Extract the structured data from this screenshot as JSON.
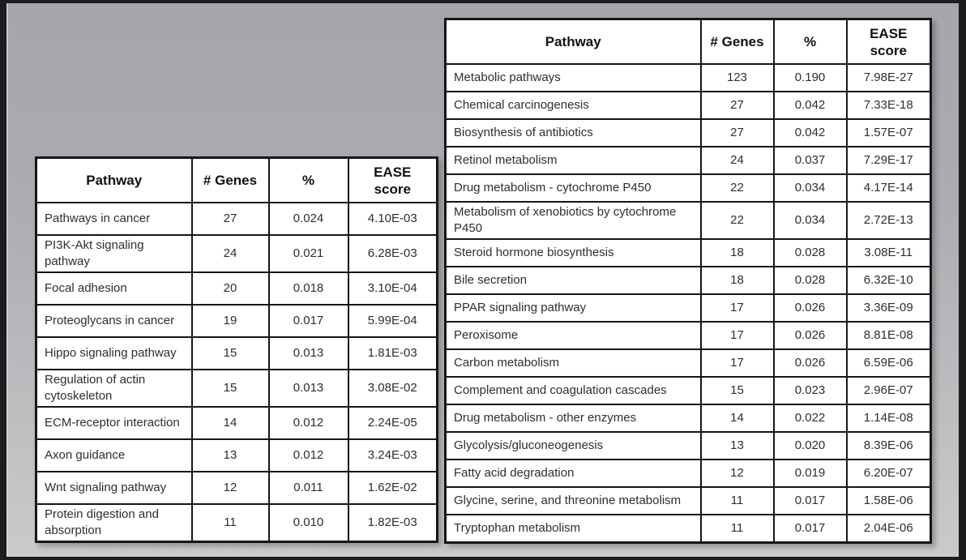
{
  "tables": {
    "left": {
      "headers": {
        "pathway": "Pathway",
        "genes": "# Genes",
        "pct": "%",
        "ease": "EASE score"
      },
      "rows": [
        {
          "pathway": "Pathways in cancer",
          "genes": "27",
          "pct": "0.024",
          "ease": "4.10E-03"
        },
        {
          "pathway": "PI3K-Akt signaling pathway",
          "genes": "24",
          "pct": "0.021",
          "ease": "6.28E-03"
        },
        {
          "pathway": "Focal adhesion",
          "genes": "20",
          "pct": "0.018",
          "ease": "3.10E-04"
        },
        {
          "pathway": "Proteoglycans in cancer",
          "genes": "19",
          "pct": "0.017",
          "ease": "5.99E-04"
        },
        {
          "pathway": "Hippo signaling pathway",
          "genes": "15",
          "pct": "0.013",
          "ease": "1.81E-03"
        },
        {
          "pathway": "Regulation of actin cytoskeleton",
          "genes": "15",
          "pct": "0.013",
          "ease": "3.08E-02"
        },
        {
          "pathway": "ECM-receptor interaction",
          "genes": "14",
          "pct": "0.012",
          "ease": "2.24E-05"
        },
        {
          "pathway": "Axon guidance",
          "genes": "13",
          "pct": "0.012",
          "ease": "3.24E-03"
        },
        {
          "pathway": "Wnt signaling pathway",
          "genes": "12",
          "pct": "0.011",
          "ease": "1.62E-02"
        },
        {
          "pathway": "Protein digestion and absorption",
          "genes": "11",
          "pct": "0.010",
          "ease": "1.82E-03"
        }
      ]
    },
    "right": {
      "headers": {
        "pathway": "Pathway",
        "genes": "# Genes",
        "pct": "%",
        "ease": "EASE score"
      },
      "rows": [
        {
          "pathway": "Metabolic pathways",
          "genes": "123",
          "pct": "0.190",
          "ease": "7.98E-27"
        },
        {
          "pathway": "Chemical carcinogenesis",
          "genes": "27",
          "pct": "0.042",
          "ease": "7.33E-18"
        },
        {
          "pathway": "Biosynthesis of antibiotics",
          "genes": "27",
          "pct": "0.042",
          "ease": "1.57E-07"
        },
        {
          "pathway": "Retinol metabolism",
          "genes": "24",
          "pct": "0.037",
          "ease": "7.29E-17"
        },
        {
          "pathway": "Drug metabolism - cytochrome P450",
          "genes": "22",
          "pct": "0.034",
          "ease": "4.17E-14"
        },
        {
          "pathway": "Metabolism of xenobiotics by cytochrome P450",
          "genes": "22",
          "pct": "0.034",
          "ease": "2.72E-13"
        },
        {
          "pathway": "Steroid hormone biosynthesis",
          "genes": "18",
          "pct": "0.028",
          "ease": "3.08E-11"
        },
        {
          "pathway": "Bile secretion",
          "genes": "18",
          "pct": "0.028",
          "ease": "6.32E-10"
        },
        {
          "pathway": "PPAR signaling pathway",
          "genes": "17",
          "pct": "0.026",
          "ease": "3.36E-09"
        },
        {
          "pathway": "Peroxisome",
          "genes": "17",
          "pct": "0.026",
          "ease": "8.81E-08"
        },
        {
          "pathway": "Carbon metabolism",
          "genes": "17",
          "pct": "0.026",
          "ease": "6.59E-06"
        },
        {
          "pathway": "Complement and coagulation cascades",
          "genes": "15",
          "pct": "0.023",
          "ease": "2.96E-07"
        },
        {
          "pathway": "Drug metabolism - other enzymes",
          "genes": "14",
          "pct": "0.022",
          "ease": "1.14E-08"
        },
        {
          "pathway": "Glycolysis/gluconeogenesis",
          "genes": "13",
          "pct": "0.020",
          "ease": "8.39E-06"
        },
        {
          "pathway": "Fatty acid degradation",
          "genes": "12",
          "pct": "0.019",
          "ease": "6.20E-07"
        },
        {
          "pathway": "Glycine, serine, and threonine metabolism",
          "genes": "11",
          "pct": "0.017",
          "ease": "1.58E-06"
        },
        {
          "pathway": "Tryptophan metabolism",
          "genes": "11",
          "pct": "0.017",
          "ease": "2.04E-06"
        }
      ]
    }
  },
  "colors": {
    "frame": "#1d1d1f",
    "background_top": "#a5a6aa",
    "background_bottom": "#c9cacb",
    "table_border": "#161616",
    "cell_background": "#ffffff",
    "text": "#2e2e2e"
  }
}
